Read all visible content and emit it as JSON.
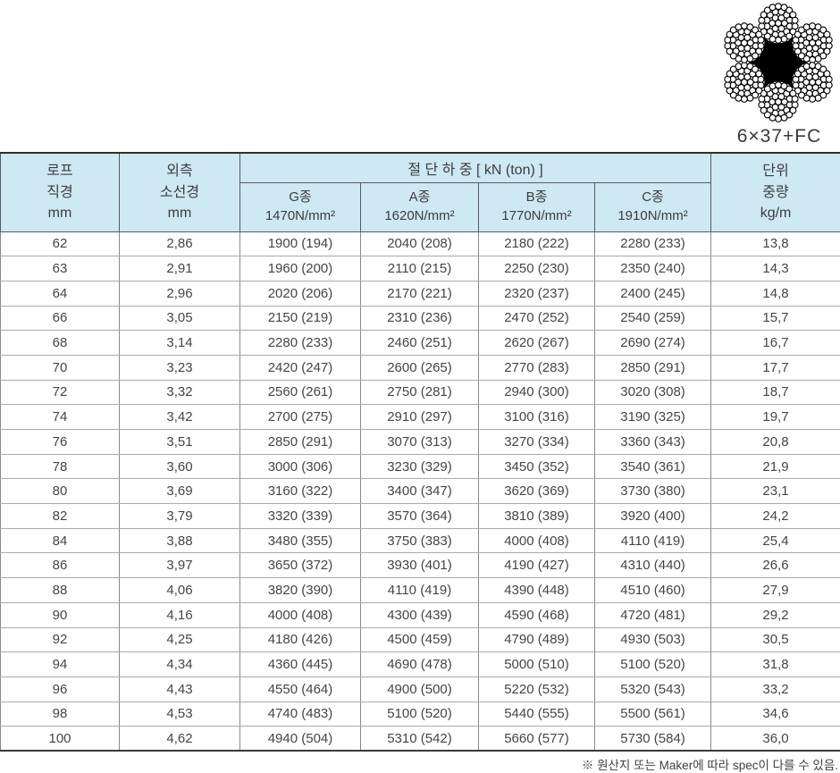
{
  "colors": {
    "header_bg": "#cee8f4",
    "core_black": "#000000",
    "border_dark": "#2f2f2f"
  },
  "diagram": {
    "caption": "6×37+FC"
  },
  "table": {
    "headers": {
      "rope_diameter": "로프\n직경\nmm",
      "outer_wire": "외측\n소선경\nmm",
      "breaking_load": "절 단 하 중 [ kN (ton) ]",
      "grades": [
        "G종\n1470N/mm²",
        "A종\n1620N/mm²",
        "B종\n1770N/mm²",
        "C종\n1910N/mm²"
      ],
      "unit_weight": "단위\n중량\nkg/m"
    },
    "rows": [
      [
        "62",
        "2,86",
        "1900 (194)",
        "2040 (208)",
        "2180 (222)",
        "2280 (233)",
        "13,8"
      ],
      [
        "63",
        "2,91",
        "1960 (200)",
        "2110 (215)",
        "2250 (230)",
        "2350 (240)",
        "14,3"
      ],
      [
        "64",
        "2,96",
        "2020 (206)",
        "2170 (221)",
        "2320 (237)",
        "2400 (245)",
        "14,8"
      ],
      [
        "66",
        "3,05",
        "2150 (219)",
        "2310 (236)",
        "2470 (252)",
        "2540 (259)",
        "15,7"
      ],
      [
        "68",
        "3,14",
        "2280 (233)",
        "2460 (251)",
        "2620 (267)",
        "2690 (274)",
        "16,7"
      ],
      [
        "70",
        "3,23",
        "2420 (247)",
        "2600 (265)",
        "2770 (283)",
        "2850 (291)",
        "17,7"
      ],
      [
        "72",
        "3,32",
        "2560 (261)",
        "2750 (281)",
        "2940 (300)",
        "3020 (308)",
        "18,7"
      ],
      [
        "74",
        "3,42",
        "2700 (275)",
        "2910 (297)",
        "3100 (316)",
        "3190 (325)",
        "19,7"
      ],
      [
        "76",
        "3,51",
        "2850 (291)",
        "3070 (313)",
        "3270 (334)",
        "3360 (343)",
        "20,8"
      ],
      [
        "78",
        "3,60",
        "3000 (306)",
        "3230 (329)",
        "3450 (352)",
        "3540 (361)",
        "21,9"
      ],
      [
        "80",
        "3,69",
        "3160 (322)",
        "3400 (347)",
        "3620 (369)",
        "3730 (380)",
        "23,1"
      ],
      [
        "82",
        "3,79",
        "3320 (339)",
        "3570 (364)",
        "3810 (389)",
        "3920 (400)",
        "24,2"
      ],
      [
        "84",
        "3,88",
        "3480 (355)",
        "3750 (383)",
        "4000 (408)",
        "4110 (419)",
        "25,4"
      ],
      [
        "86",
        "3,97",
        "3650 (372)",
        "3930 (401)",
        "4190 (427)",
        "4310 (440)",
        "26,6"
      ],
      [
        "88",
        "4,06",
        "3820 (390)",
        "4110 (419)",
        "4390 (448)",
        "4510 (460)",
        "27,9"
      ],
      [
        "90",
        "4,16",
        "4000 (408)",
        "4300 (439)",
        "4590 (468)",
        "4720 (481)",
        "29,2"
      ],
      [
        "92",
        "4,25",
        "4180 (426)",
        "4500 (459)",
        "4790 (489)",
        "4930 (503)",
        "30,5"
      ],
      [
        "94",
        "4,34",
        "4360 (445)",
        "4690 (478)",
        "5000 (510)",
        "5100 (520)",
        "31,8"
      ],
      [
        "96",
        "4,43",
        "4550 (464)",
        "4900 (500)",
        "5220 (532)",
        "5320 (543)",
        "33,2"
      ],
      [
        "98",
        "4,53",
        "4740 (483)",
        "5100 (520)",
        "5440 (555)",
        "5500 (561)",
        "34,6"
      ],
      [
        "100",
        "4,62",
        "4940 (504)",
        "5310 (542)",
        "5660 (577)",
        "5730 (584)",
        "36,0"
      ]
    ]
  },
  "footnote": "※  원산지 또는 Maker에 따라 spec이 다를 수 있음."
}
